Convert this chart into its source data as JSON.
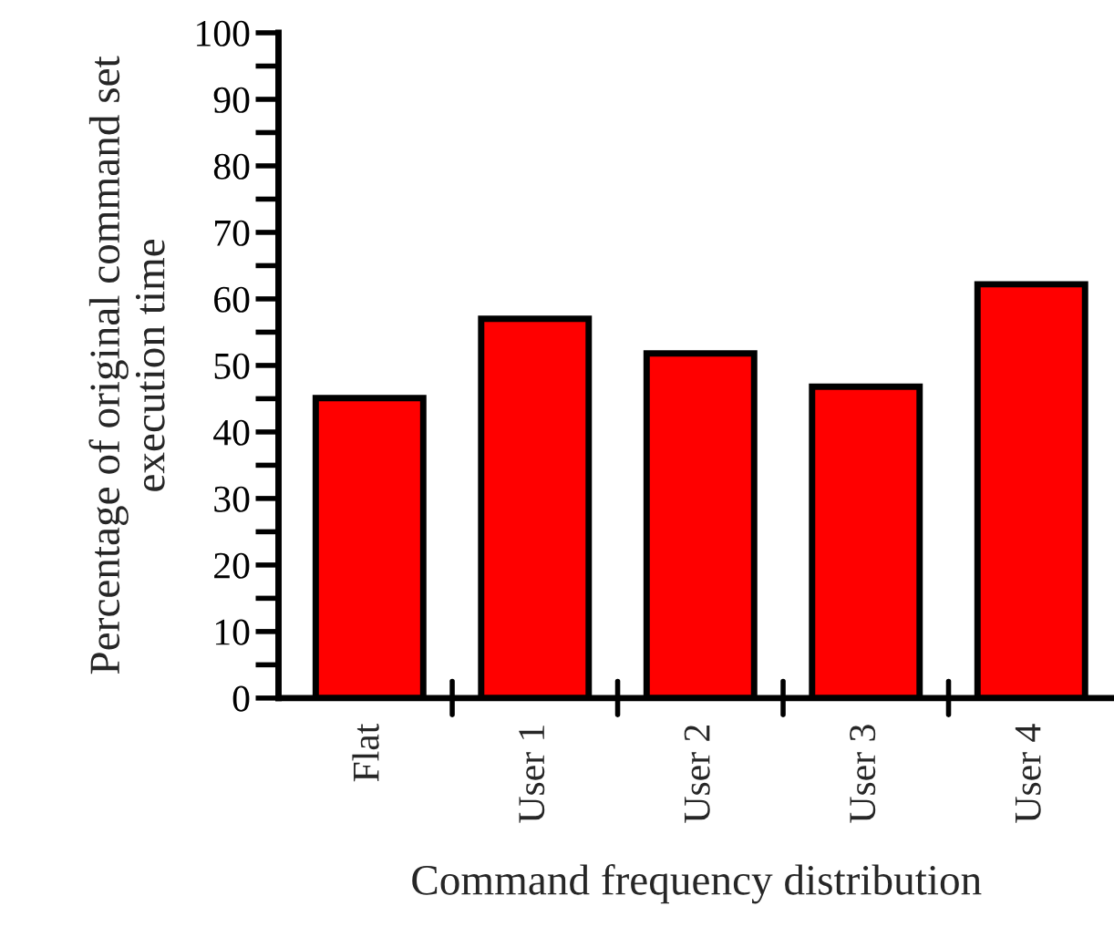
{
  "chart_data": {
    "type": "bar",
    "xlabel": "Command frequency distribution",
    "ylabel": "Percentage of original command set\nexecution time",
    "categories": [
      "Flat",
      "User 1",
      "User 2",
      "User 3",
      "User 4"
    ],
    "values": [
      45.1,
      57.0,
      51.8,
      46.8,
      62.2
    ],
    "color": "#ff0000",
    "ylim": [
      0,
      100
    ],
    "yticks": [
      0,
      {
        "value": 5,
        "label": null
      },
      10,
      {
        "value": 15,
        "label": null
      },
      20,
      {
        "value": 25,
        "label": null
      },
      30,
      {
        "value": 35,
        "label": null
      },
      40,
      {
        "value": 45,
        "label": null
      },
      50,
      {
        "value": 55,
        "label": null
      },
      60,
      {
        "value": 65,
        "label": null
      },
      70,
      {
        "value": 75,
        "label": null
      },
      80,
      {
        "value": 85,
        "label": null
      },
      90,
      {
        "value": 95,
        "label": null
      },
      100
    ],
    "grid": false
  }
}
